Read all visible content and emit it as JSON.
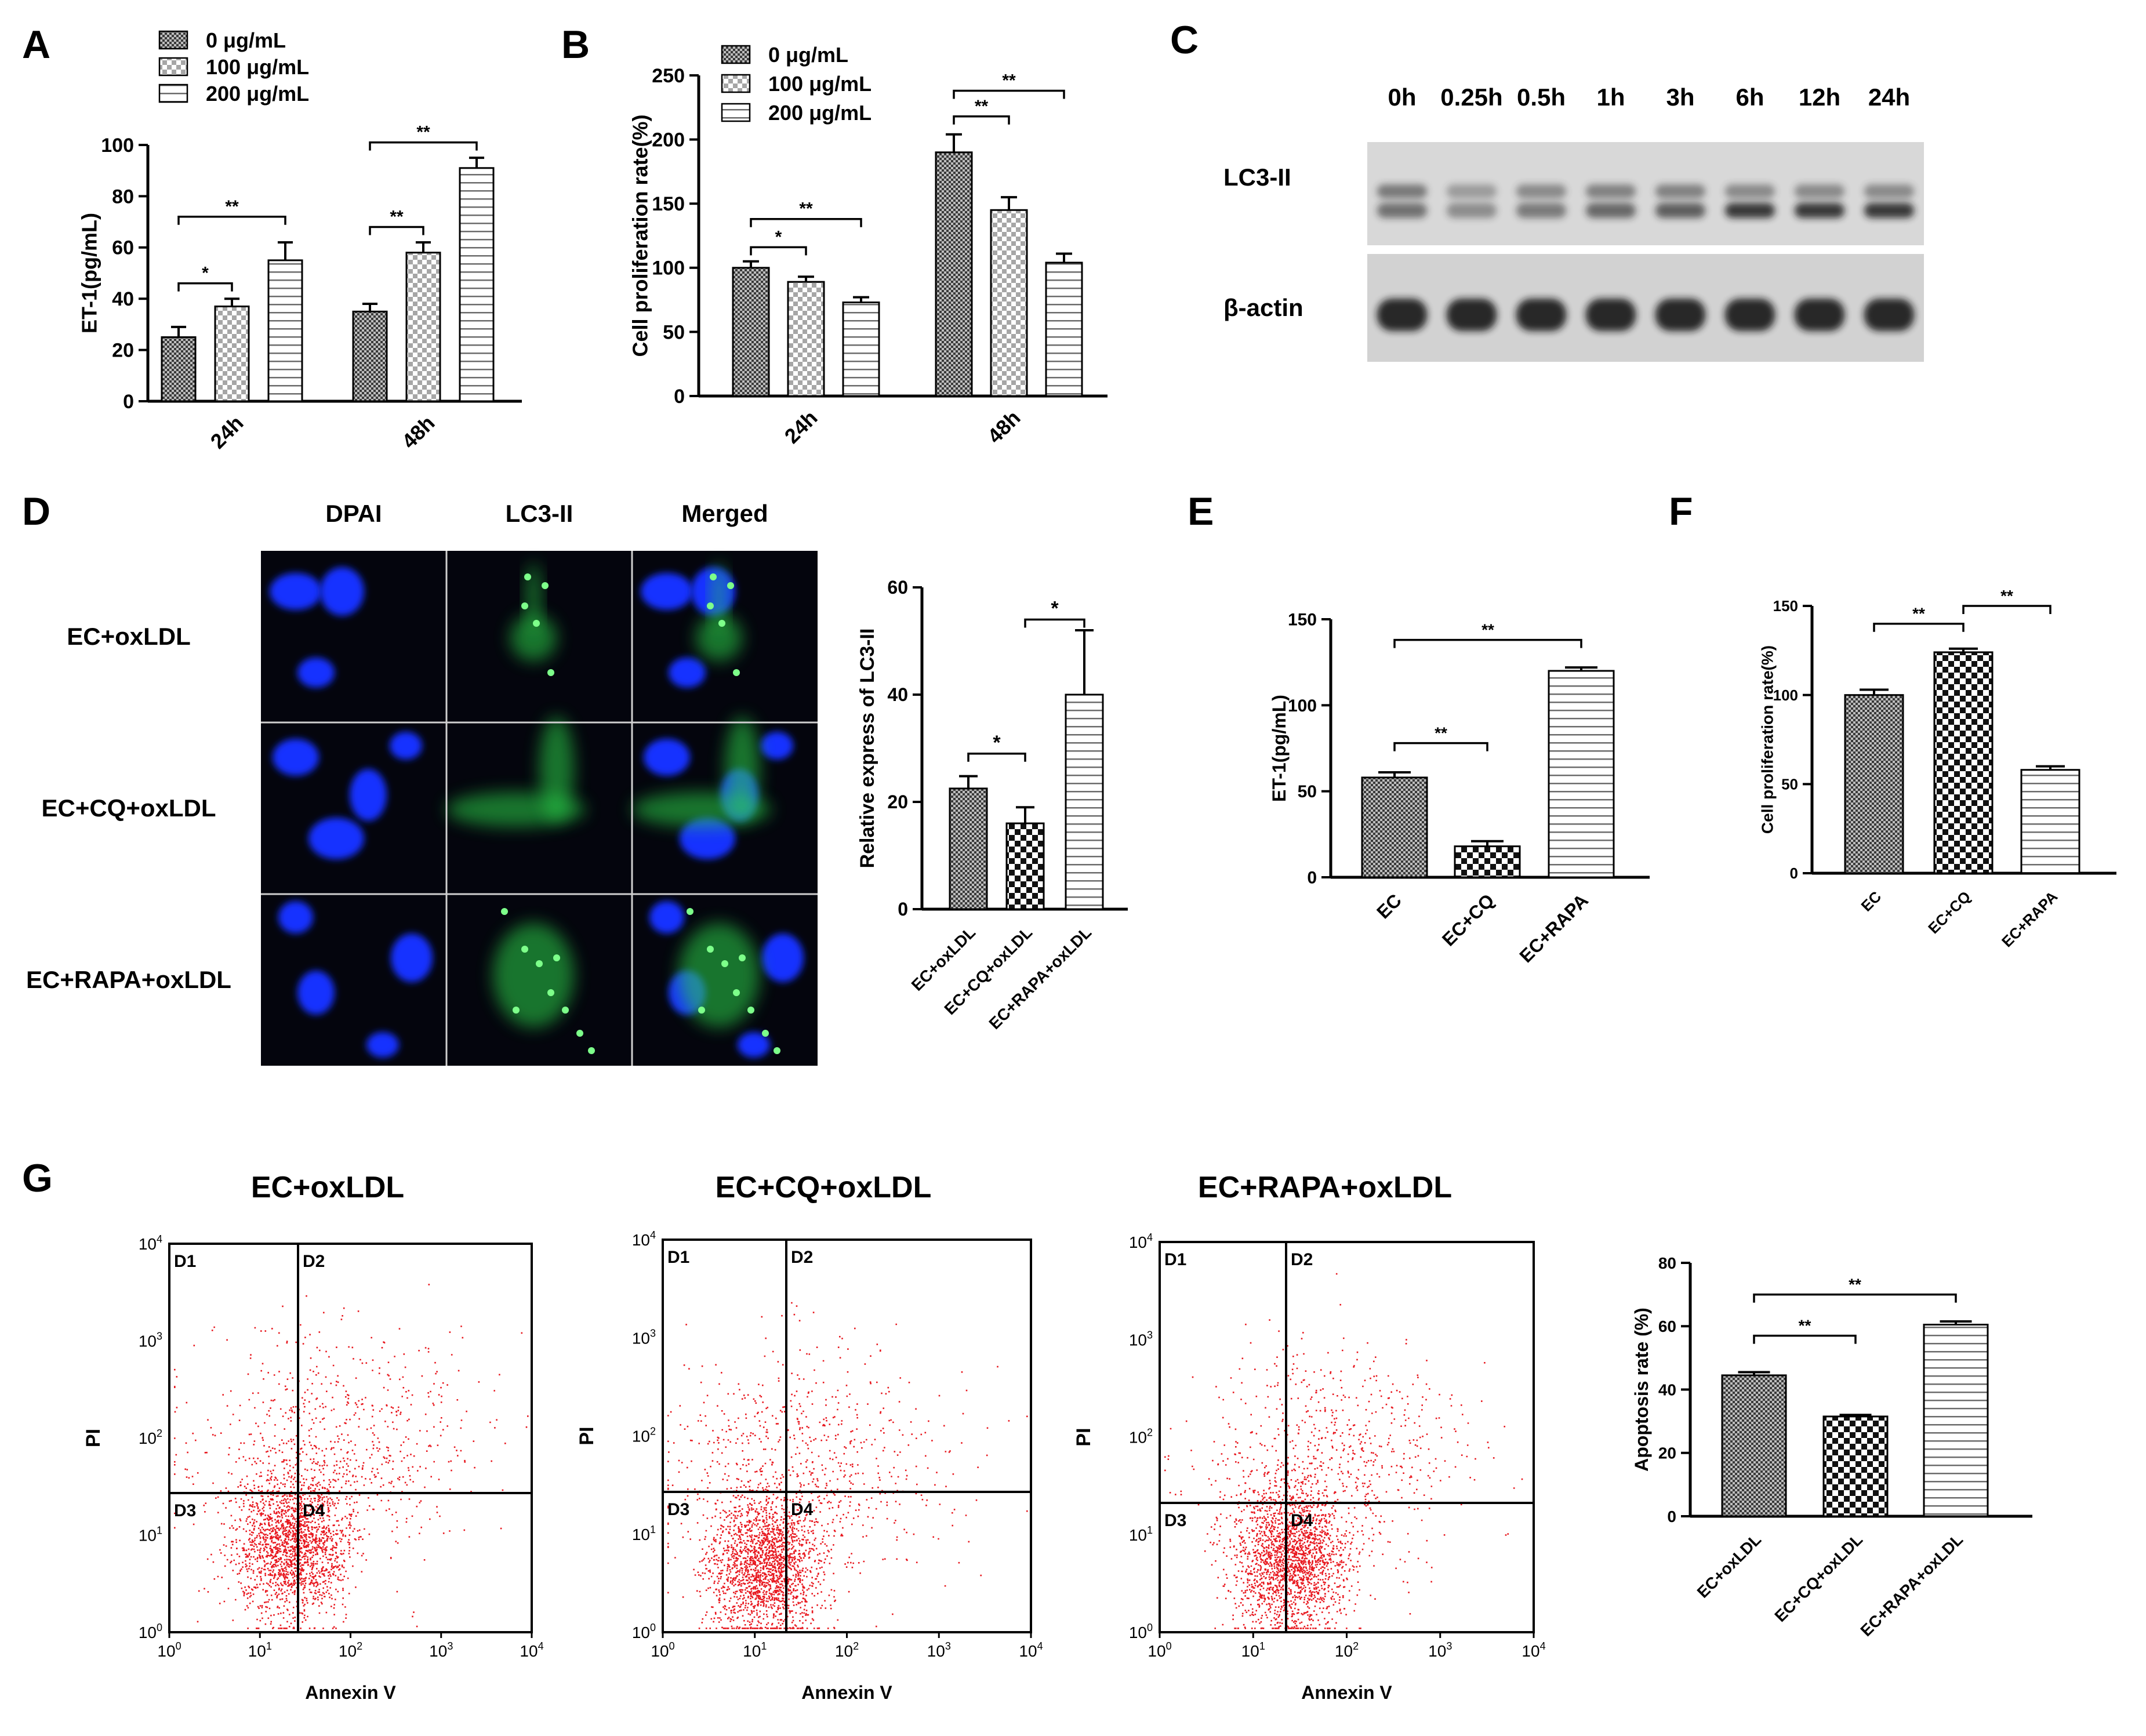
{
  "colors": {
    "axis": "#000000",
    "dot": "#e8181f",
    "nucleus": "#1632ff",
    "lc3": "#2cd14a",
    "blot_bg": "#d9d9d9",
    "band": "#2e2e2e"
  },
  "panels": {
    "A": "A",
    "B": "B",
    "C": "C",
    "D": "D",
    "E": "E",
    "F": "F",
    "G": "G"
  },
  "chart_data": [
    {
      "id": "A",
      "type": "bar",
      "ylabel": "ET-1(pg/mL)",
      "ylim": [
        0,
        100
      ],
      "ticks": [
        0,
        20,
        40,
        60,
        80,
        100
      ],
      "categories": [
        "24h",
        "48h"
      ],
      "legend": [
        "0 μg/mL",
        "100 μg/mL",
        "200 μg/mL"
      ],
      "series": [
        {
          "name": "0 μg/mL",
          "values": [
            25,
            35
          ],
          "errors": [
            4,
            3
          ]
        },
        {
          "name": "100 μg/mL",
          "values": [
            37,
            58
          ],
          "errors": [
            3,
            4
          ]
        },
        {
          "name": "200 μg/mL",
          "values": [
            55,
            91
          ],
          "errors": [
            7,
            4
          ]
        }
      ],
      "significance": [
        {
          "cat": 0,
          "from": 0,
          "to": 1,
          "label": "*",
          "y": 46
        },
        {
          "cat": 0,
          "from": 0,
          "to": 2,
          "label": "**",
          "y": 72
        },
        {
          "cat": 1,
          "from": 0,
          "to": 1,
          "label": "**",
          "y": 68
        },
        {
          "cat": 1,
          "from": 0,
          "to": 2,
          "label": "**",
          "y": 101
        }
      ]
    },
    {
      "id": "B",
      "type": "bar",
      "ylabel": "Cell proliferation rate(%)",
      "ylim": [
        0,
        250
      ],
      "ticks": [
        0,
        50,
        100,
        150,
        200,
        250
      ],
      "categories": [
        "24h",
        "48h"
      ],
      "legend": [
        "0 μg/mL",
        "100 μg/mL",
        "200 μg/mL"
      ],
      "series": [
        {
          "name": "0 μg/mL",
          "values": [
            100,
            190
          ],
          "errors": [
            5,
            14
          ]
        },
        {
          "name": "100 μg/mL",
          "values": [
            89,
            145
          ],
          "errors": [
            4,
            10
          ]
        },
        {
          "name": "200 μg/mL",
          "values": [
            73,
            104
          ],
          "errors": [
            4,
            7
          ]
        }
      ],
      "significance": [
        {
          "cat": 0,
          "from": 0,
          "to": 1,
          "label": "*",
          "y": 116
        },
        {
          "cat": 0,
          "from": 0,
          "to": 2,
          "label": "**",
          "y": 138
        },
        {
          "cat": 1,
          "from": 0,
          "to": 1,
          "label": "**",
          "y": 218
        },
        {
          "cat": 1,
          "from": 0,
          "to": 2,
          "label": "**",
          "y": 238
        }
      ]
    },
    {
      "id": "D",
      "type": "bar",
      "ylabel": "Relative express of LC3-II",
      "ylim": [
        0,
        60
      ],
      "ticks": [
        0,
        20,
        40,
        60
      ],
      "categories": [
        "EC+oxLDL",
        "EC+CQ+oxLDL",
        "EC+RAPA+oxLDL"
      ],
      "values": [
        22.5,
        16,
        40
      ],
      "errors": [
        2.3,
        3,
        12
      ],
      "significance": [
        {
          "from": 0,
          "to": 1,
          "label": "*",
          "y": 29
        },
        {
          "from": 1,
          "to": 2,
          "label": "*",
          "y": 54
        }
      ]
    },
    {
      "id": "E",
      "type": "bar",
      "ylabel": "ET-1(pg/mL)",
      "ylim": [
        0,
        150
      ],
      "ticks": [
        0,
        50,
        100,
        150
      ],
      "categories": [
        "EC",
        "EC+CQ",
        "EC+RAPA"
      ],
      "values": [
        58,
        18,
        120
      ],
      "errors": [
        3,
        3,
        2
      ],
      "significance": [
        {
          "from": 0,
          "to": 1,
          "label": "**",
          "y": 78
        },
        {
          "from": 0,
          "to": 2,
          "label": "**",
          "y": 138
        }
      ]
    },
    {
      "id": "F",
      "type": "bar",
      "ylabel": "Cell proliferation rate(%)",
      "ylim": [
        0,
        150
      ],
      "ticks": [
        0,
        50,
        100,
        150
      ],
      "categories": [
        "EC",
        "EC+CQ",
        "EC+RAPA"
      ],
      "values": [
        100,
        124,
        58
      ],
      "errors": [
        3,
        2,
        2
      ],
      "significance": [
        {
          "from": 0,
          "to": 1,
          "label": "**",
          "y": 140
        },
        {
          "from": 1,
          "to": 2,
          "label": "**",
          "y": 150
        }
      ]
    },
    {
      "id": "G",
      "type": "bar",
      "ylabel": "Apoptosis rate (%)",
      "ylim": [
        0,
        80
      ],
      "ticks": [
        0,
        20,
        40,
        60,
        80
      ],
      "categories": [
        "EC+oxLDL",
        "EC+CQ+oxLDL",
        "EC+RAPA+oxLDL"
      ],
      "values": [
        44.5,
        31.5,
        60.5
      ],
      "errors": [
        1,
        0.5,
        1
      ],
      "significance": [
        {
          "from": 0,
          "to": 1,
          "label": "**",
          "y": 57
        },
        {
          "from": 0,
          "to": 2,
          "label": "**",
          "y": 70
        }
      ]
    }
  ],
  "blot": {
    "timepoints": [
      "0h",
      "0.25h",
      "0.5h",
      "1h",
      "3h",
      "6h",
      "12h",
      "24h"
    ],
    "rows": [
      "LC3-II",
      "β-actin"
    ],
    "lc3_upper": [
      0.55,
      0.35,
      0.45,
      0.5,
      0.5,
      0.45,
      0.45,
      0.45
    ],
    "lc3_lower": [
      0.55,
      0.4,
      0.5,
      0.6,
      0.65,
      0.85,
      0.85,
      0.85
    ],
    "actin": [
      0.9,
      0.9,
      0.9,
      0.9,
      0.9,
      0.9,
      0.9,
      0.9
    ]
  },
  "microscopy": {
    "columns": [
      "DPAI",
      "LC3-II",
      "Merged"
    ],
    "rows": [
      "EC+oxLDL",
      "EC+CQ+oxLDL",
      "EC+RAPA+oxLDL"
    ]
  },
  "flow": {
    "titles": [
      "EC+oxLDL",
      "EC+CQ+oxLDL",
      "EC+RAPA+oxLDL"
    ],
    "xlabel": "Annexin V",
    "ylabel": "PI",
    "quadrants": [
      "D1",
      "D2",
      "D3",
      "D4"
    ],
    "tick_exps": [
      "0",
      "1",
      "2",
      "3",
      "4"
    ],
    "base": "10"
  }
}
